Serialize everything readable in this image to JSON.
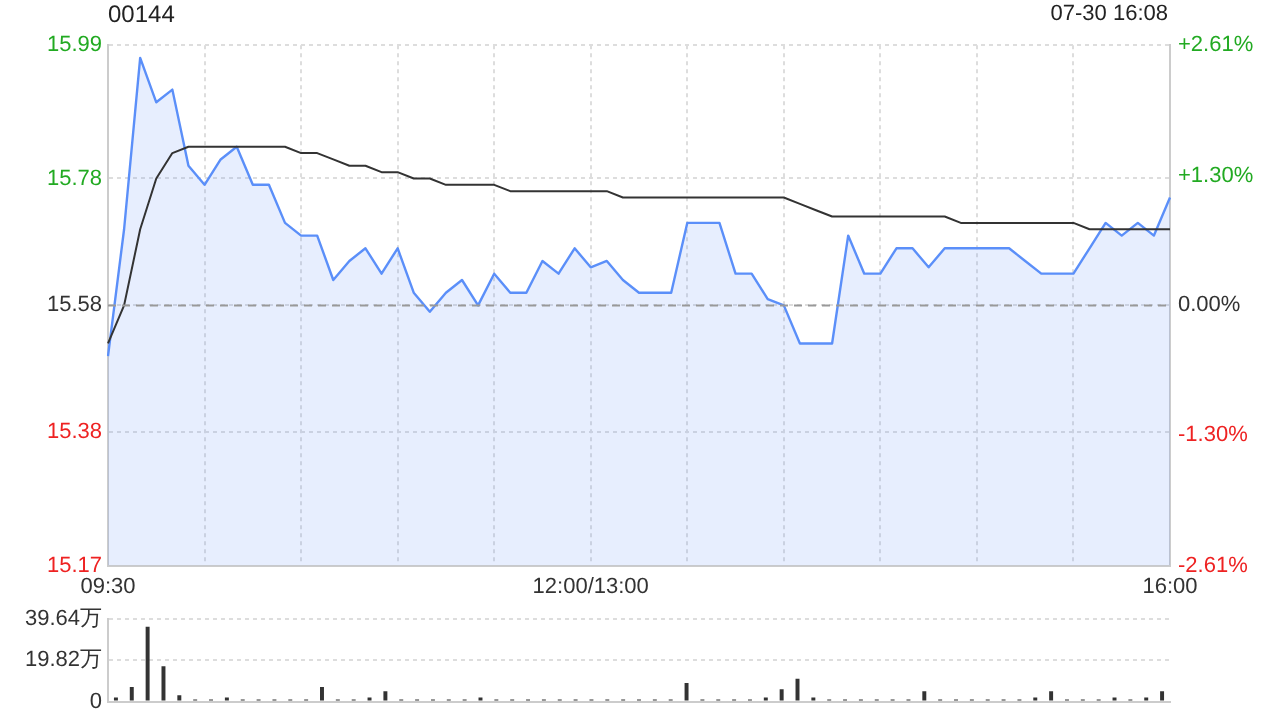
{
  "chart_data": [
    {
      "type": "area",
      "title": "00144",
      "annotations": [
        "07-30 16:08"
      ],
      "categories": [
        "09:30",
        null,
        null,
        null,
        null,
        null,
        null,
        null,
        null,
        null,
        null,
        null,
        null,
        null,
        null,
        null,
        null,
        null,
        null,
        null,
        null,
        null,
        null,
        null,
        null,
        null,
        null,
        null,
        null,
        null,
        "12:00/13:00",
        null,
        null,
        null,
        null,
        null,
        null,
        null,
        null,
        null,
        null,
        null,
        null,
        null,
        null,
        null,
        null,
        null,
        null,
        null,
        null,
        null,
        null,
        null,
        null,
        null,
        null,
        null,
        null,
        null,
        null,
        null,
        null,
        null,
        null,
        null,
        "16:00"
      ],
      "series": [
        {
          "color": "#5b8ff9",
          "values": [
            15.5,
            15.7,
            15.97,
            15.9,
            15.92,
            15.8,
            15.77,
            15.81,
            15.83,
            15.77,
            15.77,
            15.71,
            15.69,
            15.69,
            15.62,
            15.65,
            15.67,
            15.63,
            15.67,
            15.6,
            15.57,
            15.6,
            15.62,
            15.58,
            15.63,
            15.6,
            15.6,
            15.65,
            15.63,
            15.67,
            15.64,
            15.65,
            15.62,
            15.6,
            15.6,
            15.6,
            15.71,
            15.71,
            15.71,
            15.63,
            15.63,
            15.59,
            15.58,
            15.52,
            15.52,
            15.52,
            15.69,
            15.63,
            15.63,
            15.67,
            15.67,
            15.64,
            15.67,
            15.67,
            15.67,
            15.67,
            15.67,
            15.65,
            15.63,
            15.63,
            15.63,
            15.67,
            15.71,
            15.69,
            15.71,
            15.69,
            15.75
          ]
        },
        {
          "type": "line",
          "color": "#333333",
          "values": [
            15.52,
            15.58,
            15.7,
            15.78,
            15.82,
            15.83,
            15.83,
            15.83,
            15.83,
            15.83,
            15.83,
            15.83,
            15.82,
            15.82,
            15.81,
            15.8,
            15.8,
            15.79,
            15.79,
            15.78,
            15.78,
            15.77,
            15.77,
            15.77,
            15.77,
            15.76,
            15.76,
            15.76,
            15.76,
            15.76,
            15.76,
            15.76,
            15.75,
            15.75,
            15.75,
            15.75,
            15.75,
            15.75,
            15.75,
            15.75,
            15.75,
            15.75,
            15.75,
            15.74,
            15.73,
            15.72,
            15.72,
            15.72,
            15.72,
            15.72,
            15.72,
            15.72,
            15.72,
            15.71,
            15.71,
            15.71,
            15.71,
            15.71,
            15.71,
            15.71,
            15.71,
            15.7,
            15.7,
            15.7,
            15.7,
            15.7,
            15.7
          ]
        }
      ],
      "ylim": [
        15.17,
        15.99
      ],
      "yticks": [
        15.17,
        15.38,
        15.58,
        15.78,
        15.99
      ],
      "y2lim": [
        -2.61,
        2.61
      ],
      "y2ticks": [
        {
          "value": 2.61,
          "label": "+2.61%"
        },
        {
          "value": 1.3,
          "label": "+1.30%"
        },
        {
          "value": 0,
          "label": "0.00%"
        },
        {
          "value": -1.3,
          "label": "-1.30%"
        },
        {
          "value": -2.61,
          "label": "-2.61%"
        }
      ],
      "ref_lines": [
        {
          "axis": "y",
          "value": 15.58,
          "color": "#999999",
          "line_style": "dashed"
        }
      ],
      "grid": true
    },
    {
      "type": "bar",
      "categories": [
        null,
        null,
        null,
        null,
        null,
        null,
        null,
        null,
        null,
        null,
        null,
        null,
        null,
        null,
        null,
        null,
        null,
        null,
        null,
        null,
        null,
        null,
        null,
        null,
        null,
        null,
        null,
        null,
        null,
        null,
        null,
        null,
        null,
        null,
        null,
        null,
        null,
        null,
        null,
        null,
        null,
        null,
        null,
        null,
        null,
        null,
        null,
        null,
        null,
        null,
        null,
        null,
        null,
        null,
        null,
        null,
        null,
        null,
        null,
        null,
        null,
        null,
        null,
        null,
        null,
        null,
        null
      ],
      "color": "#333333",
      "values": [
        2,
        7,
        36,
        17,
        3,
        1,
        1,
        2,
        1,
        1,
        1,
        1,
        1,
        7,
        1,
        1,
        2,
        5,
        1,
        1,
        1,
        1,
        1,
        2,
        1,
        1,
        1,
        1,
        1,
        1,
        1,
        1,
        1,
        1,
        1,
        1,
        9,
        1,
        1,
        1,
        1,
        2,
        6,
        11,
        2,
        1,
        1,
        1,
        1,
        1,
        1,
        5,
        1,
        1,
        1,
        1,
        1,
        1,
        2,
        5,
        1,
        1,
        1,
        2,
        1,
        2,
        5
      ],
      "ylim": [
        0,
        39.64
      ],
      "yticks": [
        0,
        {
          "value": 19.82,
          "label": "19.82万"
        },
        {
          "value": 39.64,
          "label": "39.64万"
        }
      ],
      "grid": "y"
    }
  ]
}
